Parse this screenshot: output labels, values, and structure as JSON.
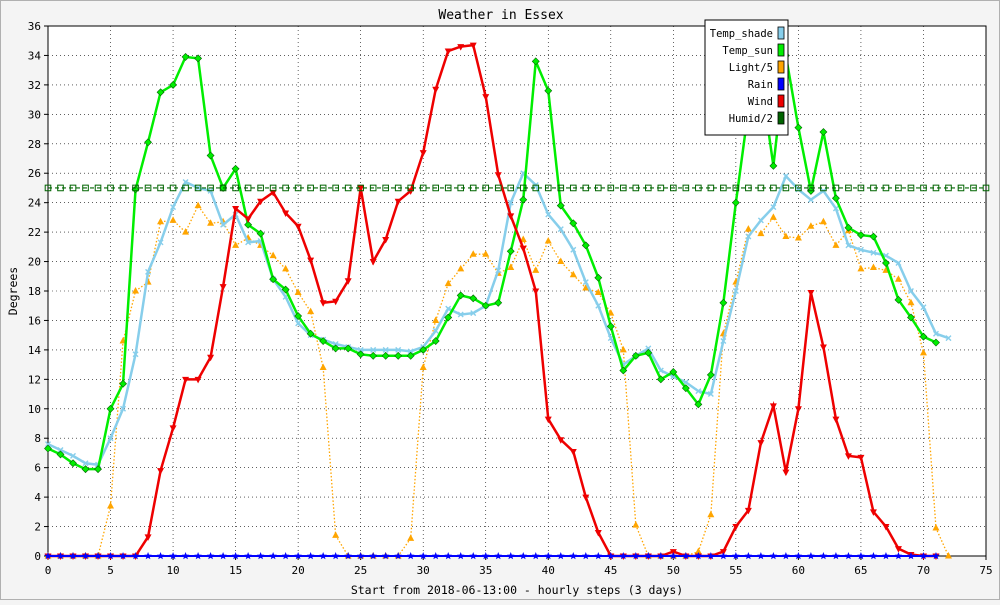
{
  "chart_data": {
    "type": "line",
    "title": "Weather in Essex",
    "xlabel": "Start from 2018-06-13:00 - hourly steps (3 days)",
    "ylabel": "Degrees",
    "xlim": [
      0,
      75
    ],
    "ylim": [
      0,
      36
    ],
    "xticks": [
      0,
      5,
      10,
      15,
      20,
      25,
      30,
      35,
      40,
      45,
      50,
      55,
      60,
      65,
      70,
      75
    ],
    "yticks": [
      0,
      2,
      4,
      6,
      8,
      10,
      12,
      14,
      16,
      18,
      20,
      22,
      24,
      26,
      28,
      30,
      32,
      34,
      36
    ],
    "grid": true,
    "legend_position": "top-right",
    "series": [
      {
        "name": "Temp_shade",
        "color": "#87ceeb",
        "line": "solid",
        "marker": "x",
        "values": [
          7.6,
          7.2,
          6.8,
          6.3,
          6.2,
          8.0,
          10.0,
          13.7,
          19.3,
          21.3,
          23.7,
          25.4,
          25.0,
          24.8,
          22.5,
          23.2,
          21.3,
          21.4,
          18.8,
          17.6,
          15.8,
          15.0,
          14.7,
          14.4,
          14.2,
          14.0,
          14.0,
          14.0,
          14.0,
          13.9,
          14.2,
          15.3,
          16.8,
          16.4,
          16.5,
          17.0,
          19.4,
          24.0,
          26.0,
          25.2,
          23.2,
          22.2,
          20.8,
          18.6,
          17.0,
          14.8,
          13.0,
          13.6,
          14.1,
          12.6,
          12.2,
          11.8,
          11.2,
          11.0,
          14.6,
          18.0,
          21.7,
          22.8,
          23.7,
          25.8,
          24.9,
          24.2,
          24.8,
          23.6,
          21.1,
          20.8,
          20.6,
          20.4,
          19.9,
          18.0,
          16.9,
          15.1,
          14.8
        ]
      },
      {
        "name": "Temp_sun",
        "color": "#00ee00",
        "line": "solid",
        "marker": "diamond",
        "values": [
          7.3,
          6.9,
          6.3,
          5.9,
          5.9,
          10.0,
          11.7,
          24.9,
          28.1,
          31.5,
          32.0,
          33.9,
          33.8,
          27.2,
          25.0,
          26.3,
          22.5,
          21.9,
          18.8,
          18.1,
          16.3,
          15.1,
          14.6,
          14.1,
          14.1,
          13.7,
          13.6,
          13.6,
          13.6,
          13.6,
          14.0,
          14.6,
          16.2,
          17.7,
          17.5,
          17.0,
          17.2,
          20.7,
          24.2,
          33.6,
          31.6,
          23.8,
          22.6,
          21.1,
          18.9,
          15.6,
          12.6,
          13.6,
          13.8,
          12.0,
          12.5,
          11.4,
          10.3,
          12.3,
          17.2,
          24.0,
          30.3,
          32.5,
          26.5,
          34.0,
          29.1,
          24.8,
          28.8,
          24.3,
          22.3,
          21.8,
          21.7,
          19.9,
          17.4,
          16.2,
          14.9,
          14.5
        ]
      },
      {
        "name": "Light/5",
        "color": "#ffa500",
        "line": "dotted",
        "marker": "triangle",
        "values": [
          0,
          0,
          0,
          0,
          0,
          3.4,
          14.6,
          18.0,
          18.6,
          22.7,
          22.8,
          22.0,
          23.8,
          22.6,
          22.7,
          21.1,
          21.6,
          21.1,
          20.4,
          19.5,
          17.9,
          16.6,
          12.8,
          1.4,
          0,
          0,
          0,
          0,
          0,
          1.2,
          12.8,
          16.0,
          18.5,
          19.5,
          20.5,
          20.5,
          19.2,
          19.6,
          21.5,
          19.4,
          21.4,
          20.0,
          19.1,
          18.2,
          17.9,
          16.5,
          14.0,
          2.1,
          0,
          0,
          0,
          0,
          0.3,
          2.8,
          15.1,
          18.6,
          22.2,
          21.9,
          23.0,
          21.7,
          21.6,
          22.4,
          22.7,
          21.1,
          22.1,
          19.5,
          19.6,
          19.4,
          18.8,
          17.2,
          13.8,
          1.9,
          0
        ]
      },
      {
        "name": "Rain",
        "color": "#0000ff",
        "line": "solid",
        "marker": "star",
        "values": [
          0,
          0,
          0,
          0,
          0,
          0,
          0,
          0,
          0,
          0,
          0,
          0,
          0,
          0,
          0,
          0,
          0,
          0,
          0,
          0,
          0,
          0,
          0,
          0,
          0,
          0,
          0,
          0,
          0,
          0,
          0,
          0,
          0,
          0,
          0,
          0,
          0,
          0,
          0,
          0,
          0,
          0,
          0,
          0,
          0,
          0,
          0,
          0,
          0,
          0,
          0,
          0,
          0,
          0,
          0,
          0,
          0,
          0,
          0,
          0,
          0,
          0,
          0,
          0,
          0,
          0,
          0,
          0,
          0,
          0,
          0,
          0
        ]
      },
      {
        "name": "Wind",
        "color": "#ee0000",
        "line": "solid",
        "marker": "triangle-down",
        "values": [
          0,
          0,
          0,
          0,
          0,
          0,
          0,
          0,
          1.3,
          5.8,
          8.7,
          12.0,
          12.0,
          13.5,
          18.3,
          23.6,
          22.9,
          24.1,
          24.7,
          23.3,
          22.4,
          20.1,
          17.2,
          17.3,
          18.7,
          25.0,
          20.0,
          21.5,
          24.1,
          24.8,
          27.4,
          31.7,
          34.3,
          34.6,
          34.7,
          31.2,
          25.9,
          23.1,
          20.9,
          18.0,
          9.3,
          7.9,
          7.1,
          4.0,
          1.6,
          0,
          0,
          0,
          0,
          0,
          0.3,
          0,
          0,
          0,
          0.3,
          2.0,
          3.1,
          7.7,
          10.2,
          5.7,
          10.0,
          17.9,
          14.2,
          9.3,
          6.8,
          6.7,
          3.0,
          2.0,
          0.5,
          0.1,
          0,
          0
        ]
      },
      {
        "name": "Humid/2",
        "color": "#006400",
        "line": "dashed",
        "marker": "square",
        "values": [
          25,
          25,
          25,
          25,
          25,
          25,
          25,
          25,
          25,
          25,
          25,
          25,
          25,
          25,
          25,
          25,
          25,
          25,
          25,
          25,
          25,
          25,
          25,
          25,
          25,
          25,
          25,
          25,
          25,
          25,
          25,
          25,
          25,
          25,
          25,
          25,
          25,
          25,
          25,
          25,
          25,
          25,
          25,
          25,
          25,
          25,
          25,
          25,
          25,
          25,
          25,
          25,
          25,
          25,
          25,
          25,
          25,
          25,
          25,
          25,
          25,
          25,
          25,
          25,
          25,
          25,
          25,
          25,
          25,
          25,
          25,
          25,
          25,
          25,
          25,
          25
        ]
      }
    ]
  }
}
